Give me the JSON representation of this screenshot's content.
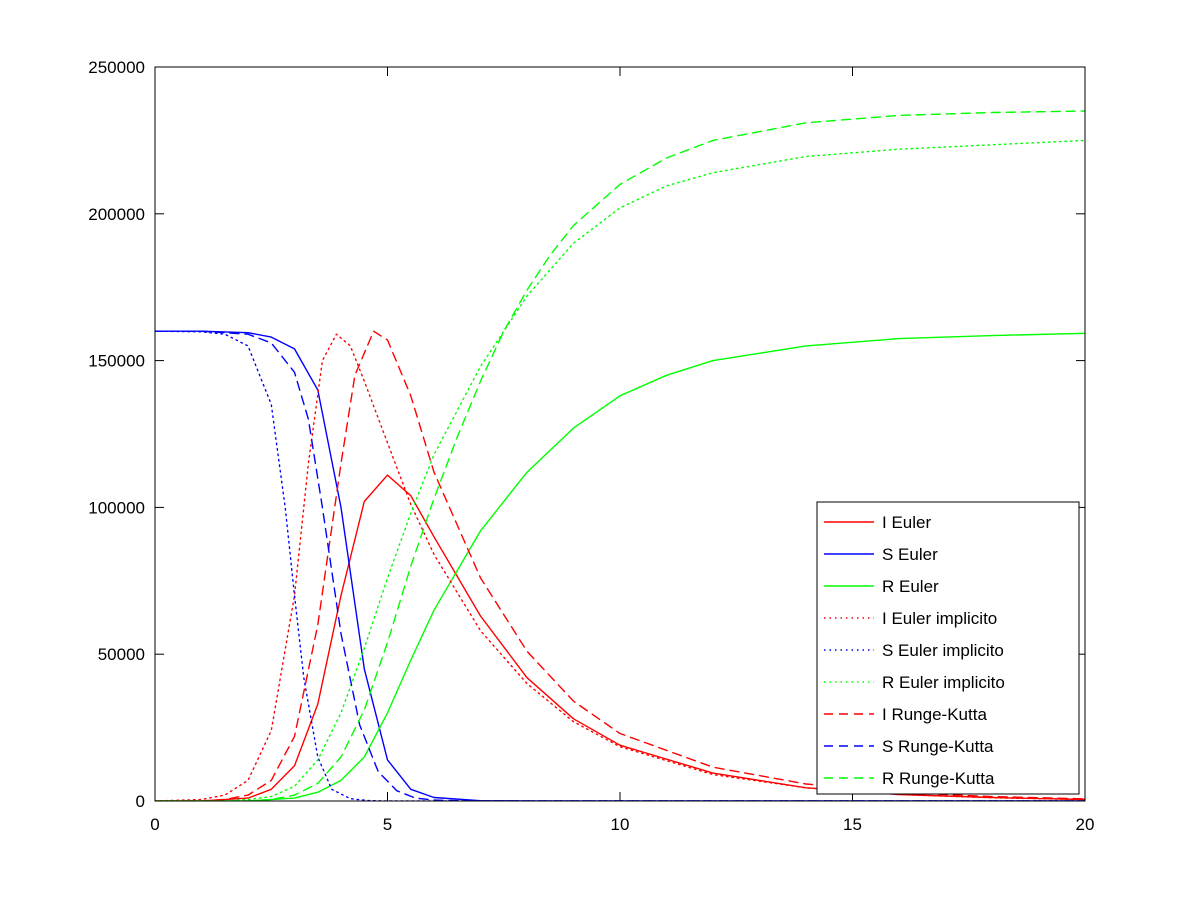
{
  "chart_data": {
    "type": "line",
    "title": "",
    "xlabel": "",
    "ylabel": "",
    "xlim": [
      0,
      20
    ],
    "ylim": [
      0,
      250000
    ],
    "x_ticks": [
      0,
      5,
      10,
      15,
      20
    ],
    "y_ticks": [
      0,
      50000,
      100000,
      150000,
      200000,
      250000
    ],
    "x_tick_labels": [
      "0",
      "5",
      "10",
      "15",
      "20"
    ],
    "y_tick_labels": [
      "0",
      "50000",
      "100000",
      "150000",
      "200000",
      "250000"
    ],
    "grid": false,
    "legend_position": "bottom-right",
    "series": [
      {
        "name": "I Euler",
        "color": "#ff0000",
        "style": "solid",
        "x": [
          0,
          1,
          2,
          2.5,
          3,
          3.5,
          4,
          4.5,
          5,
          5.5,
          6,
          7,
          8,
          9,
          10,
          12,
          14,
          16,
          18,
          20
        ],
        "y": [
          0,
          0,
          1000,
          4000,
          12000,
          33000,
          70000,
          102000,
          111000,
          104000,
          90000,
          63000,
          42000,
          28000,
          19000,
          9500,
          4500,
          2200,
          1200,
          500
        ]
      },
      {
        "name": "S Euler",
        "color": "#0000ff",
        "style": "solid",
        "x": [
          0,
          1,
          2,
          2.5,
          3,
          3.5,
          4,
          4.5,
          5,
          5.5,
          6,
          7,
          8,
          10,
          15,
          20
        ],
        "y": [
          160000,
          160000,
          159500,
          158000,
          154000,
          140000,
          100000,
          45000,
          14000,
          4000,
          1200,
          100,
          0,
          0,
          0,
          0
        ]
      },
      {
        "name": "R Euler",
        "color": "#00ff00",
        "style": "solid",
        "x": [
          0,
          2,
          3,
          3.5,
          4,
          4.5,
          5,
          5.5,
          6,
          7,
          8,
          9,
          10,
          11,
          12,
          14,
          16,
          18,
          20
        ],
        "y": [
          0,
          0,
          1000,
          3000,
          7000,
          15000,
          30000,
          48000,
          65000,
          92000,
          112000,
          127000,
          138000,
          145000,
          150000,
          155000,
          157500,
          158500,
          159300
        ]
      },
      {
        "name": "I Euler implicito",
        "color": "#ff0000",
        "style": "dotted",
        "x": [
          0,
          1,
          1.5,
          2,
          2.5,
          3,
          3.3,
          3.6,
          3.9,
          4.2,
          4.5,
          5,
          5.5,
          6,
          7,
          8,
          9,
          10,
          12,
          14,
          16,
          18,
          20
        ],
        "y": [
          0,
          500,
          2000,
          7000,
          24000,
          70000,
          115000,
          150000,
          159000,
          155000,
          143000,
          122000,
          101000,
          84000,
          58000,
          40000,
          27000,
          18500,
          9000,
          4500,
          2200,
          1100,
          500
        ]
      },
      {
        "name": "S Euler implicito",
        "color": "#0000ff",
        "style": "dotted",
        "x": [
          0,
          1,
          1.5,
          2,
          2.5,
          2.8,
          3,
          3.2,
          3.5,
          3.8,
          4.2,
          4.6,
          5,
          6,
          10,
          20
        ],
        "y": [
          160000,
          159800,
          159000,
          155000,
          135000,
          100000,
          70000,
          42000,
          15000,
          4000,
          800,
          150,
          0,
          0,
          0,
          0
        ]
      },
      {
        "name": "R Euler implicito",
        "color": "#00ff00",
        "style": "dotted",
        "x": [
          0,
          1.5,
          2,
          2.5,
          3,
          3.5,
          4,
          4.5,
          5,
          5.5,
          6,
          7,
          8,
          9,
          10,
          11,
          12,
          14,
          16,
          18,
          20
        ],
        "y": [
          0,
          0,
          500,
          1500,
          5000,
          14000,
          30000,
          52000,
          76000,
          98000,
          118000,
          148000,
          172000,
          190000,
          202000,
          209500,
          214000,
          219500,
          222000,
          223500,
          225000
        ]
      },
      {
        "name": "I Runge-Kutta",
        "color": "#ff0000",
        "style": "dashed",
        "x": [
          0,
          1,
          1.5,
          2,
          2.5,
          3,
          3.5,
          4,
          4.3,
          4.7,
          5,
          5.5,
          6,
          7,
          8,
          9,
          10,
          12,
          14,
          16,
          18,
          20
        ],
        "y": [
          0,
          0,
          500,
          2000,
          7000,
          22000,
          60000,
          115000,
          145000,
          160000,
          157000,
          138000,
          112000,
          76000,
          51000,
          34000,
          23000,
          11500,
          5800,
          2900,
          1500,
          700
        ]
      },
      {
        "name": "S Runge-Kutta",
        "color": "#0000ff",
        "style": "dashed",
        "x": [
          0,
          1,
          2,
          2.5,
          3,
          3.3,
          3.6,
          4,
          4.4,
          4.8,
          5.2,
          5.6,
          6,
          7,
          10,
          20
        ],
        "y": [
          160000,
          160000,
          159000,
          156000,
          146000,
          130000,
          100000,
          57000,
          26000,
          10000,
          3500,
          1000,
          300,
          0,
          0,
          0
        ]
      },
      {
        "name": "R Runge-Kutta",
        "color": "#00ff00",
        "style": "dashed",
        "x": [
          0,
          2,
          2.5,
          3,
          3.5,
          4,
          4.5,
          5,
          5.5,
          6,
          6.5,
          7,
          7.5,
          8,
          8.5,
          9,
          10,
          11,
          12,
          14,
          16,
          18,
          20
        ],
        "y": [
          0,
          0,
          500,
          2000,
          6000,
          15000,
          31000,
          54000,
          80000,
          103000,
          124000,
          143000,
          160000,
          174000,
          186000,
          196000,
          210000,
          219000,
          225000,
          231000,
          233500,
          234500,
          235000
        ]
      }
    ]
  }
}
